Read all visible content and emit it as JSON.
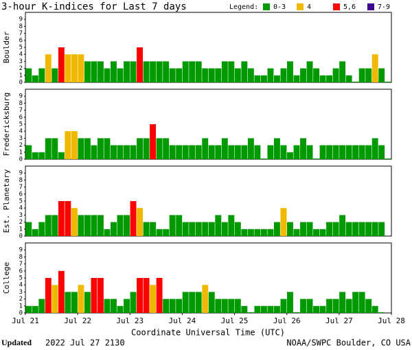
{
  "header": {
    "title": "3-hour K-indices for Last 7 days",
    "legend_title": "Legend:",
    "legend": [
      {
        "label": "0-3",
        "color": "#009900"
      },
      {
        "label": "4",
        "color": "#f0b800"
      },
      {
        "label": "5,6",
        "color": "#ff0000"
      },
      {
        "label": "7-9",
        "color": "#400090"
      }
    ]
  },
  "x_label": "Coordinate Universal Time (UTC)",
  "footer": {
    "updated_label": "Updated",
    "timestamp": "2022 Jul 27 2130",
    "source": "NOAA/SWPC Boulder, CO USA"
  },
  "chart_data": [
    {
      "type": "bar",
      "ylabel": "Boulder",
      "xlim": [
        0,
        56
      ],
      "ylim": [
        0,
        10
      ],
      "yticks": [
        0,
        1,
        2,
        3,
        4,
        5,
        6,
        7,
        8,
        9
      ],
      "values": [
        2,
        1,
        2,
        4,
        2,
        5,
        4,
        4,
        4,
        3,
        3,
        3,
        2,
        3,
        2,
        3,
        3,
        5,
        3,
        3,
        3,
        3,
        2,
        2,
        3,
        3,
        3,
        2,
        2,
        2,
        3,
        3,
        2,
        3,
        2,
        1,
        1,
        2,
        1,
        2,
        3,
        1,
        2,
        3,
        2,
        1,
        1,
        2,
        3,
        1,
        0,
        2,
        2,
        4,
        2,
        0
      ]
    },
    {
      "type": "bar",
      "ylabel": "Fredericksburg",
      "xlim": [
        0,
        56
      ],
      "ylim": [
        0,
        10
      ],
      "yticks": [
        0,
        1,
        2,
        3,
        4,
        5,
        6,
        7,
        8,
        9
      ],
      "values": [
        2,
        1,
        1,
        3,
        3,
        1,
        4,
        4,
        3,
        3,
        2,
        3,
        3,
        2,
        2,
        2,
        2,
        3,
        3,
        5,
        3,
        3,
        2,
        2,
        2,
        2,
        2,
        3,
        2,
        2,
        3,
        2,
        2,
        2,
        3,
        2,
        0,
        2,
        3,
        2,
        1,
        2,
        3,
        2,
        0,
        2,
        2,
        2,
        2,
        2,
        2,
        2,
        2,
        3,
        2,
        0
      ]
    },
    {
      "type": "bar",
      "ylabel": "Est. Planetary",
      "xlim": [
        0,
        56
      ],
      "ylim": [
        0,
        10
      ],
      "yticks": [
        0,
        1,
        2,
        3,
        4,
        5,
        6,
        7,
        8,
        9
      ],
      "values": [
        2,
        1,
        2,
        3,
        3,
        5,
        5,
        4,
        3,
        3,
        3,
        3,
        1,
        2,
        3,
        3,
        5,
        4,
        2,
        2,
        1,
        1,
        3,
        3,
        2,
        2,
        2,
        2,
        2,
        3,
        2,
        3,
        2,
        1,
        1,
        1,
        1,
        1,
        2,
        4,
        2,
        1,
        2,
        2,
        1,
        1,
        2,
        2,
        3,
        2,
        2,
        2,
        2,
        2,
        2,
        null
      ]
    },
    {
      "type": "bar",
      "ylabel": "College",
      "xlim": [
        0,
        56
      ],
      "ylim": [
        0,
        10
      ],
      "yticks": [
        0,
        1,
        2,
        3,
        4,
        5,
        6,
        7,
        8,
        9
      ],
      "values": [
        1,
        1,
        2,
        5,
        4,
        6,
        3,
        3,
        4,
        3,
        5,
        5,
        2,
        2,
        1,
        2,
        3,
        5,
        5,
        4,
        5,
        2,
        2,
        2,
        3,
        3,
        3,
        4,
        3,
        2,
        2,
        2,
        2,
        1,
        0,
        1,
        1,
        1,
        1,
        2,
        3,
        0,
        2,
        2,
        1,
        1,
        2,
        2,
        3,
        2,
        3,
        3,
        2,
        1,
        0,
        null
      ],
      "xticks": [
        {
          "value": 0,
          "label": "Jul 21"
        },
        {
          "value": 8,
          "label": "Jul 22"
        },
        {
          "value": 16,
          "label": "Jul 23"
        },
        {
          "value": 24,
          "label": "Jul 24"
        },
        {
          "value": 32,
          "label": "Jul 25"
        },
        {
          "value": 40,
          "label": "Jul 26"
        },
        {
          "value": 48,
          "label": "Jul 27"
        },
        {
          "value": 56,
          "label": "Jul 28"
        }
      ]
    }
  ]
}
